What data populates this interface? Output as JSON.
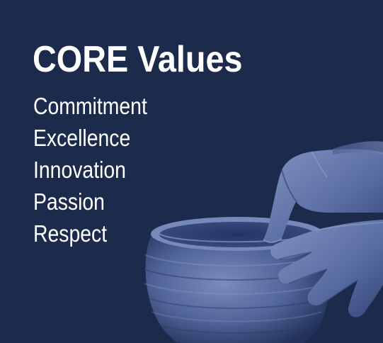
{
  "title": "CORE Values",
  "values": [
    "Commitment",
    "Excellence",
    "Innovation",
    "Passion",
    "Respect"
  ],
  "colors": {
    "background": "#1c2a4c",
    "text": "#ffffff",
    "pottery_tint": "#6b7fb0"
  },
  "illustration": "hands-shaping-clay-pot"
}
